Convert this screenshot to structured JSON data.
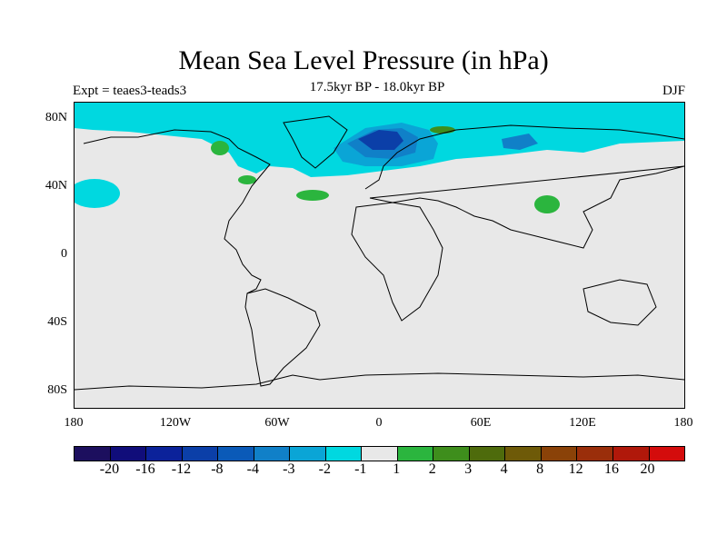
{
  "figure": {
    "title": "Mean Sea Level Pressure (in hPa)",
    "subtitle": "17.5kyr BP - 18.0kyr BP",
    "experiment": "Expt = teaes3-teads3",
    "season": "DJF"
  },
  "axes": {
    "lat_labels": [
      "80N",
      "40N",
      "0",
      "40S",
      "80S"
    ],
    "lat_values": [
      80,
      40,
      0,
      -40,
      -80
    ],
    "lon_labels": [
      "180",
      "120W",
      "60W",
      "0",
      "60E",
      "120E",
      "180"
    ],
    "lon_values": [
      -180,
      -120,
      -60,
      0,
      60,
      120,
      180
    ]
  },
  "colorbar": {
    "colors": [
      "#1c0f5e",
      "#100d7a",
      "#0b229a",
      "#0b3fa8",
      "#0a5ab8",
      "#1080c8",
      "#0aa5d6",
      "#00d8e0",
      "#e8e8e8",
      "#2bb53e",
      "#3e8e1c",
      "#4e6b0c",
      "#6e5a08",
      "#8a4208",
      "#9a2e0a",
      "#b0180a",
      "#d40c0c"
    ],
    "labels": [
      "-20",
      "-16",
      "-12",
      "-8",
      "-4",
      "-3",
      "-2",
      "-1",
      "1",
      "2",
      "3",
      "4",
      "8",
      "12",
      "16",
      "20"
    ]
  },
  "anomaly_regions": [
    {
      "name": "north-atlantic-low-core",
      "level": "-20 to -4 hPa",
      "color": "#0b3fa8"
    },
    {
      "name": "arctic-band",
      "level": "-2 to -1 hPa",
      "color": "#00d8e0"
    },
    {
      "name": "north-pacific-east",
      "level": "-2 to -1 hPa",
      "color": "#00d8e0"
    },
    {
      "name": "hudson-bay-high",
      "level": "1 to 2 hPa",
      "color": "#2bb53e"
    },
    {
      "name": "mid-atlantic-high",
      "level": "1 to 2 hPa",
      "color": "#2bb53e"
    },
    {
      "name": "central-asia-high",
      "level": "1 to 2 hPa",
      "color": "#2bb53e"
    },
    {
      "name": "barents-high",
      "level": "2 to 3 hPa",
      "color": "#3e8e1c"
    }
  ]
}
